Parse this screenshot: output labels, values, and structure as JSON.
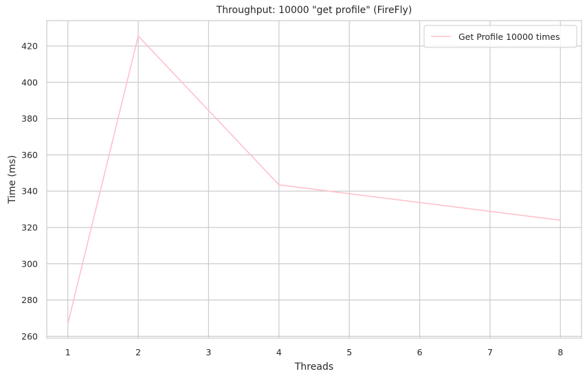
{
  "chart_data": {
    "type": "line",
    "title": "Throughput: 10000 \"get profile\" (FireFly)",
    "xlabel": "Threads",
    "ylabel": "Time (ms)",
    "xlim": [
      0.7,
      8.3
    ],
    "ylim": [
      259,
      434
    ],
    "xticks": [
      1,
      2,
      3,
      4,
      5,
      6,
      7,
      8
    ],
    "yticks": [
      260,
      280,
      300,
      320,
      340,
      360,
      380,
      400,
      420
    ],
    "grid": true,
    "legend_position": "top-right",
    "series": [
      {
        "name": "Get Profile 10000 times",
        "color": "#ffc0cb",
        "x": [
          1,
          2,
          4,
          8
        ],
        "y": [
          267,
          425.5,
          343.5,
          324
        ]
      }
    ]
  }
}
